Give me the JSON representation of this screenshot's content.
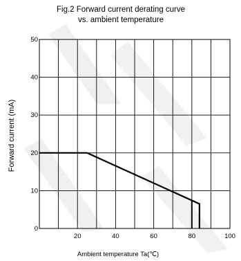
{
  "chart_data": {
    "type": "line",
    "title_lines": [
      "Fig.2 Forward current derating curve",
      "vs. ambient temperature"
    ],
    "xlabel": "Ambient temperature Ta(℃)",
    "ylabel": "Forward current (mA)",
    "xlim": [
      0,
      100
    ],
    "ylim": [
      0,
      50
    ],
    "x_ticks": [
      20,
      40,
      60,
      80,
      100
    ],
    "x_tick_labels": [
      "20",
      "40",
      "60",
      "80",
      "100"
    ],
    "y_ticks": [
      0,
      10,
      20,
      30,
      40,
      50
    ],
    "y_tick_labels": [
      "0",
      "10",
      "20",
      "30",
      "40",
      "50"
    ],
    "x_grid": [
      10,
      20,
      30,
      40,
      50,
      60,
      70,
      80,
      90
    ],
    "y_grid": [
      10,
      20,
      30,
      40
    ],
    "grid": true,
    "series": [
      {
        "x": [
          0,
          25,
          84,
          84
        ],
        "y": [
          20,
          20,
          6.5,
          0
        ]
      }
    ],
    "vertical_marker": {
      "x": 80,
      "y": [
        0,
        7.4
      ]
    },
    "colors": {
      "line": "#000000",
      "grid": "#000000",
      "watermark": "#d9d9d9"
    }
  }
}
